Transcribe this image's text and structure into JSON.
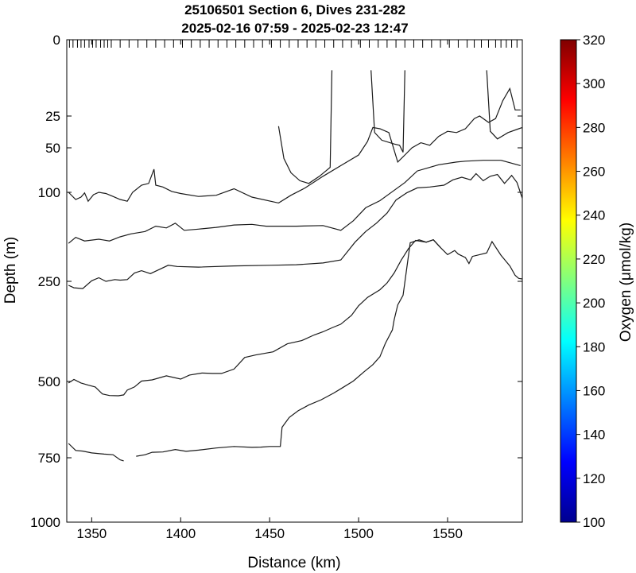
{
  "chart_data": {
    "type": "contour",
    "title": [
      "25106501 Section 6, Dives 231-282",
      "2025-02-16 07:59 - 2025-02-23 12:47"
    ],
    "xlabel": "Distance (km)",
    "ylabel": "Depth (m)",
    "colorbar_label": "Oxygen (μmol/kg)",
    "xlim": [
      1336,
      1592
    ],
    "ylim": [
      0,
      1000
    ],
    "y_scale": "custom-stretched",
    "x_ticks": [
      1350,
      1400,
      1450,
      1500,
      1550
    ],
    "y_ticks": [
      0,
      25,
      50,
      100,
      250,
      500,
      750,
      1000
    ],
    "colorbar": {
      "colormap": "jet",
      "range": [
        100,
        320
      ],
      "ticks": [
        100,
        120,
        140,
        160,
        180,
        200,
        220,
        240,
        260,
        280,
        300,
        320
      ]
    },
    "dive_marks_km": [
      1337.5,
      1339.5,
      1342,
      1344,
      1346,
      1348.5,
      1350.5,
      1352.5,
      1355,
      1357,
      1359,
      1361,
      1366,
      1371,
      1376,
      1381,
      1386,
      1391,
      1396,
      1401,
      1406,
      1411,
      1416,
      1421,
      1426,
      1431,
      1436,
      1441,
      1446,
      1451,
      1456,
      1461,
      1466,
      1471,
      1476,
      1481,
      1486,
      1491,
      1496,
      1501,
      1506,
      1511,
      1516,
      1521,
      1526,
      1531,
      1536,
      1541,
      1546,
      1551,
      1556,
      1561,
      1565,
      1569,
      1573,
      1577,
      1580,
      1583,
      1586,
      1589
    ],
    "contours": [
      {
        "points": [
          [
            1337,
            100
          ],
          [
            1341,
            112
          ],
          [
            1344,
            108
          ],
          [
            1346,
            101
          ],
          [
            1348,
            115
          ],
          [
            1351,
            104
          ],
          [
            1354,
            100
          ],
          [
            1358,
            102
          ],
          [
            1362,
            107
          ],
          [
            1366,
            112
          ],
          [
            1370,
            115
          ],
          [
            1373,
            100
          ],
          [
            1378,
            92
          ],
          [
            1382,
            90
          ],
          [
            1385,
            74
          ],
          [
            1386,
            92
          ],
          [
            1390,
            94
          ],
          [
            1395,
            99
          ],
          [
            1400,
            102
          ],
          [
            1410,
            107
          ],
          [
            1420,
            105
          ],
          [
            1430,
            96
          ],
          [
            1440,
            108
          ],
          [
            1455,
            118
          ],
          [
            1462,
            105
          ],
          [
            1470,
            95
          ],
          [
            1480,
            82
          ],
          [
            1490,
            70
          ],
          [
            1500,
            58
          ],
          [
            1505,
            45
          ],
          [
            1508,
            34
          ],
          [
            1512,
            35
          ],
          [
            1517,
            38
          ],
          [
            1522,
            66
          ],
          [
            1526,
            58
          ],
          [
            1530,
            50
          ],
          [
            1535,
            46
          ],
          [
            1540,
            48
          ],
          [
            1545,
            41
          ],
          [
            1550,
            37
          ],
          [
            1555,
            38
          ],
          [
            1560,
            35
          ],
          [
            1565,
            27
          ],
          [
            1568,
            25
          ],
          [
            1573,
            30
          ],
          [
            1577,
            27
          ],
          [
            1581,
            20
          ],
          [
            1585,
            16
          ],
          [
            1588,
            23
          ],
          [
            1591,
            23
          ]
        ]
      },
      {
        "points": [
          [
            1455,
            33
          ],
          [
            1458,
            62
          ],
          [
            1462,
            78
          ],
          [
            1467,
            87
          ],
          [
            1472,
            90
          ],
          [
            1478,
            82
          ],
          [
            1484,
            72
          ],
          [
            1485,
            10
          ]
        ]
      },
      {
        "points": [
          [
            1572,
            10
          ],
          [
            1574,
            37
          ],
          [
            1578,
            43
          ],
          [
            1584,
            38
          ],
          [
            1590,
            35
          ],
          [
            1592,
            34
          ]
        ]
      },
      {
        "points": [
          [
            1507,
            10
          ],
          [
            1509,
            38
          ],
          [
            1513,
            44
          ],
          [
            1520,
            47
          ],
          [
            1523,
            48
          ],
          [
            1525,
            55
          ],
          [
            1526,
            10
          ]
        ]
      },
      {
        "points": [
          [
            1337,
            186
          ],
          [
            1341,
            176
          ],
          [
            1346,
            182
          ],
          [
            1354,
            179
          ],
          [
            1360,
            182
          ],
          [
            1366,
            175
          ],
          [
            1372,
            170
          ],
          [
            1380,
            166
          ],
          [
            1386,
            157
          ],
          [
            1392,
            160
          ],
          [
            1397,
            152
          ],
          [
            1402,
            164
          ],
          [
            1410,
            162
          ],
          [
            1420,
            159
          ],
          [
            1430,
            155
          ],
          [
            1440,
            154
          ],
          [
            1448,
            157
          ],
          [
            1456,
            157
          ],
          [
            1465,
            157
          ],
          [
            1480,
            156
          ],
          [
            1490,
            164
          ],
          [
            1497,
            148
          ],
          [
            1504,
            126
          ],
          [
            1512,
            114
          ],
          [
            1518,
            101
          ],
          [
            1526,
            89
          ],
          [
            1533,
            76
          ],
          [
            1540,
            72
          ],
          [
            1545,
            69
          ],
          [
            1555,
            66
          ],
          [
            1560,
            65
          ],
          [
            1570,
            64
          ],
          [
            1580,
            64
          ],
          [
            1591,
            70
          ]
        ]
      },
      {
        "points": [
          [
            1337,
            260
          ],
          [
            1340,
            266
          ],
          [
            1345,
            268
          ],
          [
            1350,
            249
          ],
          [
            1354,
            244
          ],
          [
            1358,
            250
          ],
          [
            1363,
            247
          ],
          [
            1366,
            248
          ],
          [
            1370,
            247
          ],
          [
            1374,
            236
          ],
          [
            1378,
            232
          ],
          [
            1383,
            237
          ],
          [
            1388,
            230
          ],
          [
            1393,
            223
          ],
          [
            1398,
            225
          ],
          [
            1410,
            226
          ],
          [
            1430,
            224
          ],
          [
            1450,
            223
          ],
          [
            1465,
            222
          ],
          [
            1480,
            219
          ],
          [
            1490,
            214
          ],
          [
            1498,
            184
          ],
          [
            1504,
            166
          ],
          [
            1510,
            152
          ],
          [
            1516,
            135
          ],
          [
            1521,
            113
          ],
          [
            1527,
            101
          ],
          [
            1533,
            95
          ],
          [
            1540,
            94
          ],
          [
            1548,
            92
          ],
          [
            1553,
            86
          ],
          [
            1558,
            83
          ],
          [
            1563,
            86
          ],
          [
            1566,
            79
          ],
          [
            1570,
            87
          ],
          [
            1574,
            82
          ],
          [
            1578,
            80
          ],
          [
            1582,
            90
          ],
          [
            1586,
            81
          ],
          [
            1589,
            89
          ],
          [
            1592,
            110
          ]
        ]
      },
      {
        "points": [
          [
            1337,
            505
          ],
          [
            1340,
            495
          ],
          [
            1344,
            505
          ],
          [
            1348,
            512
          ],
          [
            1352,
            518
          ],
          [
            1356,
            541
          ],
          [
            1360,
            546
          ],
          [
            1365,
            547
          ],
          [
            1368,
            544
          ],
          [
            1370,
            528
          ],
          [
            1374,
            518
          ],
          [
            1378,
            499
          ],
          [
            1384,
            496
          ],
          [
            1392,
            486
          ],
          [
            1400,
            494
          ],
          [
            1405,
            484
          ],
          [
            1412,
            479
          ],
          [
            1418,
            480
          ],
          [
            1423,
            480
          ],
          [
            1430,
            469
          ],
          [
            1436,
            440
          ],
          [
            1442,
            434
          ],
          [
            1452,
            426
          ],
          [
            1460,
            406
          ],
          [
            1468,
            398
          ],
          [
            1475,
            384
          ],
          [
            1480,
            376
          ],
          [
            1485,
            366
          ],
          [
            1490,
            357
          ],
          [
            1496,
            335
          ],
          [
            1500,
            311
          ],
          [
            1505,
            290
          ],
          [
            1512,
            271
          ],
          [
            1516,
            254
          ],
          [
            1520,
            236
          ],
          [
            1524,
            214
          ],
          [
            1528,
            195
          ],
          [
            1532,
            181
          ],
          [
            1538,
            184
          ],
          [
            1542,
            180
          ],
          [
            1546,
            193
          ],
          [
            1550,
            205
          ],
          [
            1554,
            198
          ],
          [
            1556,
            204
          ],
          [
            1560,
            210
          ],
          [
            1562,
            220
          ],
          [
            1564,
            208
          ],
          [
            1568,
            205
          ],
          [
            1572,
            202
          ],
          [
            1575,
            183
          ],
          [
            1580,
            206
          ],
          [
            1585,
            224
          ],
          [
            1588,
            240
          ],
          [
            1590,
            245
          ],
          [
            1592,
            246
          ]
        ]
      },
      {
        "points": [
          [
            1337,
            703
          ],
          [
            1341,
            726
          ],
          [
            1345,
            728
          ],
          [
            1350,
            734
          ],
          [
            1357,
            738
          ],
          [
            1362,
            740
          ],
          [
            1366,
            758
          ],
          [
            1368,
            762
          ]
        ]
      },
      {
        "points": [
          [
            1375,
            745
          ],
          [
            1380,
            740
          ],
          [
            1384,
            732
          ],
          [
            1390,
            731
          ],
          [
            1397,
            723
          ],
          [
            1403,
            729
          ],
          [
            1410,
            725
          ],
          [
            1420,
            718
          ],
          [
            1430,
            713
          ],
          [
            1440,
            716
          ],
          [
            1445,
            715
          ],
          [
            1450,
            713
          ],
          [
            1456,
            713
          ],
          [
            1457,
            650
          ],
          [
            1461,
            618
          ],
          [
            1466,
            596
          ],
          [
            1472,
            577
          ],
          [
            1479,
            560
          ],
          [
            1486,
            538
          ],
          [
            1490,
            524
          ],
          [
            1497,
            499
          ],
          [
            1503,
            476
          ],
          [
            1508,
            458
          ],
          [
            1512,
            438
          ],
          [
            1515,
            405
          ],
          [
            1519,
            371
          ],
          [
            1520,
            346
          ],
          [
            1522,
            309
          ],
          [
            1525,
            285
          ],
          [
            1529,
            185
          ],
          [
            1534,
            180
          ],
          [
            1538,
            184
          ],
          [
            1542,
            180
          ],
          [
            1546,
            193
          ]
        ]
      }
    ]
  }
}
